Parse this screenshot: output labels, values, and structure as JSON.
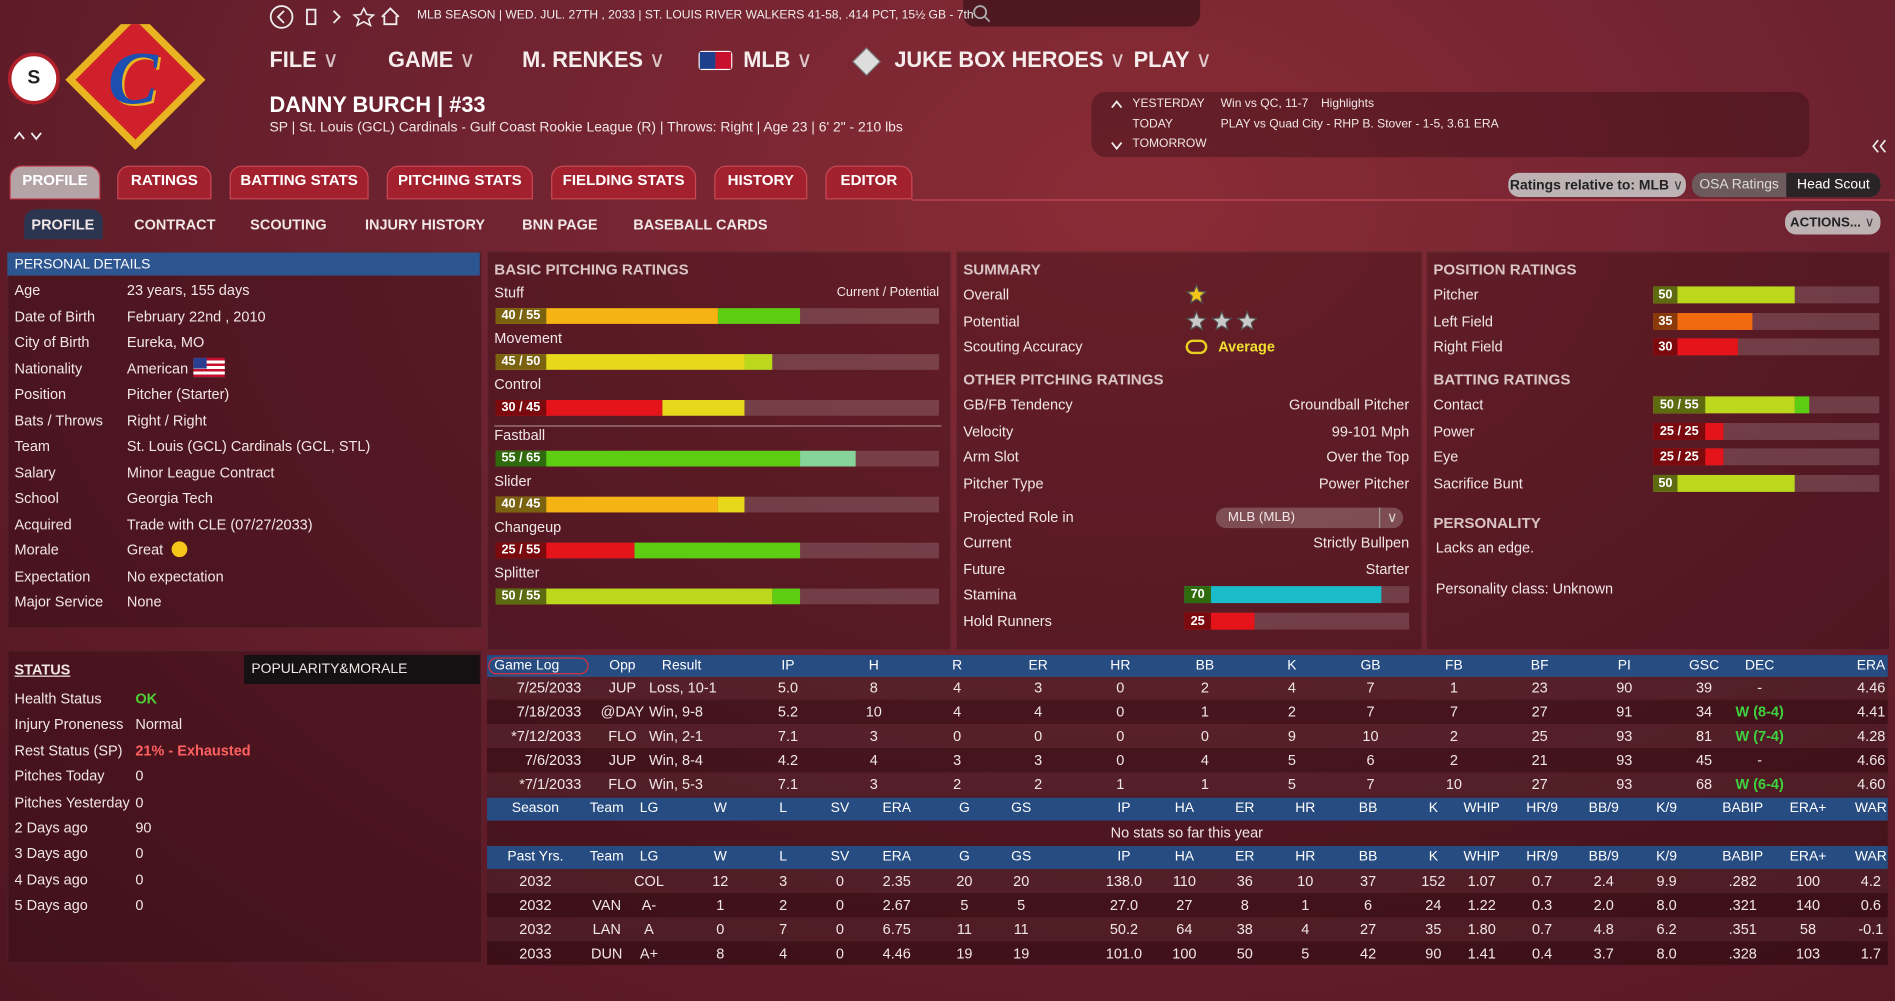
{
  "top_bar": "MLB SEASON  |  WED. JUL. 27TH , 2033  |  ST. LOUIS RIVER WALKERS   41-58, .414 PCT, 15½ GB - 7th",
  "badge": "S",
  "logo_letter": "C",
  "menu": [
    "FILE",
    "GAME",
    "M. RENKES",
    "MLB",
    "JUKE BOX HEROES",
    "PLAY"
  ],
  "player": {
    "name": "DANNY BURCH  |  #33",
    "info": "SP | St. Louis (GCL) Cardinals - Gulf Coast Rookie League (R)  |  Throws: Right  |  Age 23  |  6' 2\" - 210 lbs"
  },
  "schedule": [
    {
      "day": "YESTERDAY",
      "text": "Win vs QC, 11-7",
      "extra": "Highlights"
    },
    {
      "day": "TODAY",
      "text": "PLAY vs Quad City - RHP B. Stover - 1-5, 3.61 ERA"
    },
    {
      "day": "TOMORROW"
    }
  ],
  "tabs": [
    "PROFILE",
    "RATINGS",
    "BATTING STATS",
    "PITCHING STATS",
    "FIELDING STATS",
    "HISTORY",
    "EDITOR"
  ],
  "subtabs": [
    "PROFILE",
    "CONTRACT",
    "SCOUTING",
    "INJURY HISTORY",
    "BNN PAGE",
    "BASEBALL CARDS"
  ],
  "controls": {
    "relative": "Ratings relative to: MLB",
    "osa": "OSA Ratings",
    "scout": "Head Scout",
    "actions": "ACTIONS..."
  },
  "personal": {
    "title": "PERSONAL DETAILS",
    "rows": [
      [
        "Age",
        "23 years, 155 days"
      ],
      [
        "Date of Birth",
        "February 22nd , 2010"
      ],
      [
        "City of Birth",
        "Eureka, MO"
      ],
      [
        "Nationality",
        "American"
      ],
      [
        "Position",
        "Pitcher (Starter)"
      ],
      [
        "Bats / Throws",
        "Right / Right"
      ],
      [
        "Team",
        "St. Louis (GCL) Cardinals (GCL, STL)"
      ],
      [
        "Salary",
        "Minor League Contract"
      ],
      [
        "School",
        "Georgia Tech"
      ],
      [
        "Acquired",
        "Trade with CLE (07/27/2033)"
      ],
      [
        "Morale",
        "Great"
      ],
      [
        "Expectation",
        "No expectation"
      ],
      [
        "Major Service",
        "None"
      ]
    ]
  },
  "status": {
    "title": "STATUS",
    "tab": "POPULARITY&MORALE",
    "rows": [
      [
        "Health Status",
        "OK"
      ],
      [
        "Injury Proneness",
        "Normal"
      ],
      [
        "Rest Status (SP)",
        "21% - Exhausted"
      ],
      [
        "Pitches Today",
        "0"
      ],
      [
        "Pitches Yesterday",
        "0"
      ],
      [
        "2 Days ago",
        "90"
      ],
      [
        "3 Days ago",
        "0"
      ],
      [
        "4 Days ago",
        "0"
      ],
      [
        "5 Days ago",
        "0"
      ]
    ]
  },
  "basic_pitching": {
    "title": "BASIC PITCHING RATINGS",
    "legend": "Current / Potential",
    "ratings": [
      {
        "name": "Stuff",
        "label": "40 / 55",
        "current": 40,
        "potential": 55
      },
      {
        "name": "Movement",
        "label": "45 / 50",
        "current": 45,
        "potential": 50
      },
      {
        "name": "Control",
        "label": "30 / 45",
        "current": 30,
        "potential": 45
      },
      {
        "name": "Fastball",
        "label": "55 / 65",
        "current": 55,
        "potential": 65
      },
      {
        "name": "Slider",
        "label": "40 / 45",
        "current": 40,
        "potential": 45
      },
      {
        "name": "Changeup",
        "label": "25 / 55",
        "current": 25,
        "potential": 55
      },
      {
        "name": "Splitter",
        "label": "50 / 55",
        "current": 50,
        "potential": 55
      }
    ]
  },
  "summary": {
    "title": "SUMMARY",
    "rows": [
      {
        "label": "Overall",
        "stars": 1,
        "color": "#f2c418"
      },
      {
        "label": "Potential",
        "stars": 3,
        "color": "#c9c9c9"
      },
      {
        "label": "Scouting Accuracy",
        "value": "Average"
      }
    ]
  },
  "other_pitching": {
    "title": "OTHER PITCHING RATINGS",
    "rows": [
      [
        "GB/FB Tendency",
        "Groundball Pitcher"
      ],
      [
        "Velocity",
        "99-101 Mph"
      ],
      [
        "Arm Slot",
        "Over the Top"
      ],
      [
        "Pitcher Type",
        "Power Pitcher"
      ]
    ],
    "projected": "Projected Role in",
    "dropdown": "MLB (MLB)",
    "roles": [
      [
        "Current",
        "Strictly Bullpen"
      ],
      [
        "Future",
        "Starter"
      ]
    ],
    "bars": [
      {
        "name": "Stamina",
        "value": 70,
        "color": "#19bcc8"
      },
      {
        "name": "Hold Runners",
        "value": 25
      }
    ]
  },
  "position_ratings": {
    "title": "POSITION RATINGS",
    "rows": [
      {
        "name": "Pitcher",
        "value": 50
      },
      {
        "name": "Left Field",
        "value": 35
      },
      {
        "name": "Right Field",
        "value": 30
      }
    ]
  },
  "batting_ratings": {
    "title": "BATTING RATINGS",
    "rows": [
      {
        "name": "Contact",
        "label": "50 / 55",
        "current": 50,
        "potential": 55
      },
      {
        "name": "Power",
        "label": "25 / 25",
        "current": 25,
        "potential": 25
      },
      {
        "name": "Eye",
        "label": "25 / 25",
        "current": 25,
        "potential": 25
      },
      {
        "name": "Sacrifice Bunt",
        "value": 50
      }
    ]
  },
  "personality": {
    "title": "PERSONALITY",
    "text": "Lacks an edge.",
    "class": "Personality class: Unknown"
  },
  "game_log": {
    "header": [
      "Game Log",
      "Opp",
      "Result",
      "IP",
      "H",
      "R",
      "ER",
      "HR",
      "BB",
      "K",
      "GB",
      "FB",
      "BF",
      "PI",
      "GSC",
      "DEC",
      "ERA"
    ],
    "rows": [
      [
        "7/25/2033",
        "JUP",
        "Loss, 10-1",
        "5.0",
        "8",
        "4",
        "3",
        "0",
        "2",
        "4",
        "7",
        "1",
        "23",
        "90",
        "39",
        "-",
        "4.46"
      ],
      [
        "7/18/2033",
        "@DAY",
        "Win, 9-8",
        "5.2",
        "10",
        "4",
        "4",
        "0",
        "1",
        "2",
        "7",
        "7",
        "27",
        "91",
        "34",
        "W (8-4)",
        "4.41"
      ],
      [
        "*7/12/2033",
        "FLO",
        "Win, 2-1",
        "7.1",
        "3",
        "0",
        "0",
        "0",
        "0",
        "9",
        "10",
        "2",
        "25",
        "93",
        "81",
        "W (7-4)",
        "4.28"
      ],
      [
        "7/6/2033",
        "JUP",
        "Win, 8-4",
        "4.2",
        "4",
        "3",
        "3",
        "0",
        "4",
        "5",
        "6",
        "2",
        "21",
        "93",
        "45",
        "-",
        "4.66"
      ],
      [
        "*7/1/2033",
        "FLO",
        "Win, 5-3",
        "7.1",
        "3",
        "2",
        "2",
        "1",
        "1",
        "5",
        "7",
        "10",
        "27",
        "93",
        "68",
        "W (6-4)",
        "4.60"
      ]
    ]
  },
  "season_stats": {
    "header": [
      "Season",
      "Team",
      "LG",
      "W",
      "L",
      "SV",
      "ERA",
      "G",
      "GS",
      "IP",
      "HA",
      "ER",
      "HR",
      "BB",
      "K",
      "WHIP",
      "HR/9",
      "BB/9",
      "K/9",
      "BABIP",
      "ERA+",
      "WAR"
    ],
    "empty": "No stats so far this year"
  },
  "past_stats": {
    "header": [
      "Past Yrs.",
      "Team",
      "LG",
      "W",
      "L",
      "SV",
      "ERA",
      "G",
      "GS",
      "IP",
      "HA",
      "ER",
      "HR",
      "BB",
      "K",
      "WHIP",
      "HR/9",
      "BB/9",
      "K/9",
      "BABIP",
      "ERA+",
      "WAR"
    ],
    "rows": [
      [
        "2032",
        null,
        "COL",
        "12",
        "3",
        "0",
        "2.35",
        "20",
        "20",
        "138.0",
        "110",
        "36",
        "10",
        "37",
        "152",
        "1.07",
        "0.7",
        "2.4",
        "9.9",
        ".282",
        "100",
        "4.2"
      ],
      [
        "2032",
        "VAN",
        "A-",
        "1",
        "2",
        "0",
        "2.67",
        "5",
        "5",
        "27.0",
        "27",
        "8",
        "1",
        "6",
        "24",
        "1.22",
        "0.3",
        "2.0",
        "8.0",
        ".321",
        "140",
        "0.6"
      ],
      [
        "2032",
        "LAN",
        "A",
        "0",
        "7",
        "0",
        "6.75",
        "11",
        "11",
        "50.2",
        "64",
        "38",
        "4",
        "27",
        "35",
        "1.80",
        "0.7",
        "4.8",
        "6.2",
        ".351",
        "58",
        "-0.1"
      ],
      [
        "2033",
        "DUN",
        "A+",
        "8",
        "4",
        "0",
        "4.46",
        "19",
        "19",
        "101.0",
        "100",
        "50",
        "5",
        "42",
        "90",
        "1.41",
        "0.4",
        "3.7",
        "8.0",
        ".328",
        "103",
        "1.7"
      ]
    ]
  }
}
